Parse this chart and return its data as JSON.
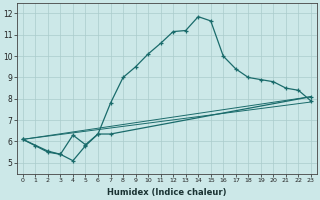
{
  "xlabel": "Humidex (Indice chaleur)",
  "bg_color": "#cce8e8",
  "grid_color": "#aacccc",
  "line_color": "#1a6b6b",
  "xlim": [
    -0.5,
    23.5
  ],
  "ylim": [
    4.5,
    12.5
  ],
  "xticks": [
    0,
    1,
    2,
    3,
    4,
    5,
    6,
    7,
    8,
    9,
    10,
    11,
    12,
    13,
    14,
    15,
    16,
    17,
    18,
    19,
    20,
    21,
    22,
    23
  ],
  "yticks": [
    5,
    6,
    7,
    8,
    9,
    10,
    11,
    12
  ],
  "line1_x": [
    0,
    1,
    2,
    3,
    4,
    5,
    6,
    7,
    8,
    9,
    10,
    11,
    12,
    13,
    14,
    15,
    16,
    17,
    18,
    19,
    20,
    21,
    22,
    23
  ],
  "line1_y": [
    6.1,
    5.8,
    5.5,
    5.4,
    5.1,
    5.8,
    6.35,
    7.8,
    9.0,
    9.5,
    10.1,
    10.6,
    11.15,
    11.2,
    11.85,
    11.65,
    10.0,
    9.4,
    9.0,
    8.9,
    8.8,
    8.5,
    8.4,
    7.9
  ],
  "line2_x": [
    0,
    2,
    3,
    4,
    5,
    6,
    7,
    23
  ],
  "line2_y": [
    6.1,
    5.55,
    5.4,
    6.3,
    5.85,
    6.35,
    6.35,
    8.1
  ],
  "line4_x": [
    0,
    23
  ],
  "line4_y": [
    6.1,
    7.85
  ],
  "line5_x": [
    0,
    23
  ],
  "line5_y": [
    6.1,
    8.1
  ]
}
